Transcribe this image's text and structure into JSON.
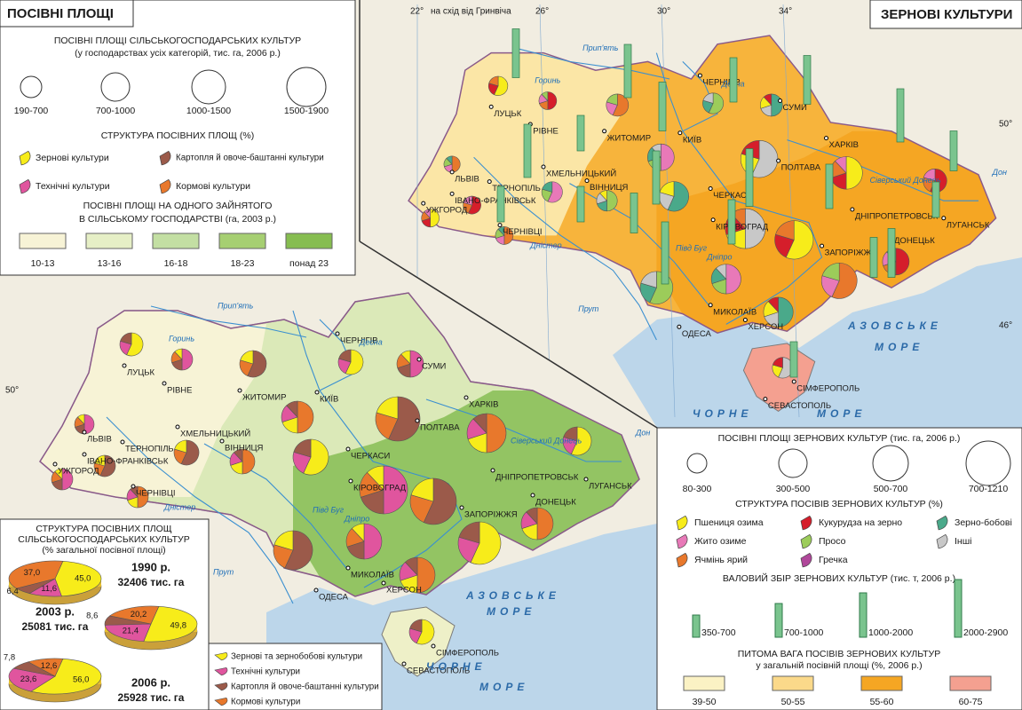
{
  "left_legend": {
    "title": "ПОСІВНІ ПЛОЩІ",
    "heading1": "ПОСІВНІ ПЛОЩІ СІЛЬСЬКОГОСПОДАРСЬКИХ КУЛЬТУР",
    "heading1_sub": "(у господарствах усіх категорій, тис. га, 2006 р.)",
    "sizes": [
      "190-700",
      "700-1000",
      "1000-1500",
      "1500-1900"
    ],
    "heading2": "СТРУКТУРА ПОСІВНИХ ПЛОЩ (%)",
    "structure": [
      "Зернові культури",
      "Картопля й овоче-баштанні культури",
      "Технічні культури",
      "Кормові культури"
    ],
    "heading3": "ПОСІВНІ ПЛОЩІ НА ОДНОГО ЗАЙНЯТОГО",
    "heading3_sub": "В СІЛЬСЬКОМУ ГОСПОДАРСТВІ (га, 2003 р.)",
    "classes": [
      "10-13",
      "13-16",
      "16-18",
      "18-23",
      "понад 23"
    ]
  },
  "right_legend": {
    "title": "ЗЕРНОВІ КУЛЬТУРИ",
    "heading1": "ПОСІВНІ ПЛОЩІ ЗЕРНОВИХ КУЛЬТУР (тис. га, 2006 р.)",
    "sizes": [
      "80-300",
      "300-500",
      "500-700",
      "700-1210"
    ],
    "heading2": "СТРУКТУРА ПОСІВІВ ЗЕРНОВИХ КУЛЬТУР (%)",
    "structure": [
      "Пшениця озима",
      "Кукурудза на зерно",
      "Зерно-бобові",
      "Жито озиме",
      "Просо",
      "Інші",
      "Ячмінь ярий",
      "Гречка"
    ],
    "heading3": "ВАЛОВИЙ ЗБІР ЗЕРНОВИХ КУЛЬТУР (тис. т, 2006 р.)",
    "bars": [
      "350-700",
      "700-1000",
      "1000-2000",
      "2000-2900"
    ],
    "heading4": "ПИТОМА ВАГА ПОСІВІВ ЗЕРНОВИХ КУЛЬТУР",
    "heading4_sub": "у загальній посівній площі (%, 2006 р.)",
    "classes": [
      "39-50",
      "50-55",
      "55-60",
      "60-75"
    ]
  },
  "inset": {
    "title": "СТРУКТУРА ПОСІВНИХ ПЛОЩ",
    "title2": "СІЛЬСЬКОГОСПОДАРСЬКИХ КУЛЬТУР",
    "title3": "(% загальної посівної площі)",
    "years": [
      {
        "year": "1990 р.",
        "total": "32406 тис. га",
        "labels": [
          "45,0",
          "11,6",
          "6,4",
          "37,0"
        ]
      },
      {
        "year": "2003 р.",
        "total": "25081 тис. га",
        "labels": [
          "49,8",
          "21,4",
          "8,6",
          "20,2"
        ]
      },
      {
        "year": "2006 р.",
        "total": "25928 тис. га",
        "labels": [
          "56,0",
          "23,6",
          "7,8",
          "12,6"
        ]
      }
    ],
    "legend": [
      "Зернові та зернобобові культури",
      "Технічні культури",
      "Картопля й овоче-баштанні культури",
      "Кормові культури"
    ]
  },
  "map": {
    "cities": [
      "ЛУЦЬК",
      "РІВНЕ",
      "ЖИТОМИР",
      "КИЇВ",
      "ЧЕРНІГІВ",
      "СУМИ",
      "ХАРКІВ",
      "ПОЛТАВА",
      "ЛЬВІВ",
      "ТЕРНОПІЛЬ",
      "ХМЕЛЬНИЦЬКИЙ",
      "ВІННИЦЯ",
      "ЧЕРКАСИ",
      "ІВАНО-ФРАНКІВСЬК",
      "УЖГОРОД",
      "ЧЕРНІВЦІ",
      "КІРОВОГРАД",
      "ДНІПРОПЕТРОВСЬК",
      "ЛУГАНСЬК",
      "ДОНЕЦЬК",
      "ЗАПОРІЖЖЯ",
      "МИКОЛАЇВ",
      "ХЕРСОН",
      "ОДЕСА",
      "СІМФЕРОПОЛЬ",
      "СЕВАСТОПОЛЬ"
    ],
    "rivers": [
      "Прип'ять",
      "Десна",
      "Горинь",
      "Дніпро",
      "Дністер",
      "Півд Буг",
      "Сіверський Донець",
      "Прут",
      "Дон"
    ],
    "seas": [
      "АЗОВСЬКЕ",
      "МОРЕ",
      "ЧОРНЕ",
      "МОРЕ"
    ],
    "graticule": [
      "22°",
      "на схід від Гринвіча",
      "26°",
      "30°",
      "34°",
      "50°",
      "46°"
    ]
  }
}
